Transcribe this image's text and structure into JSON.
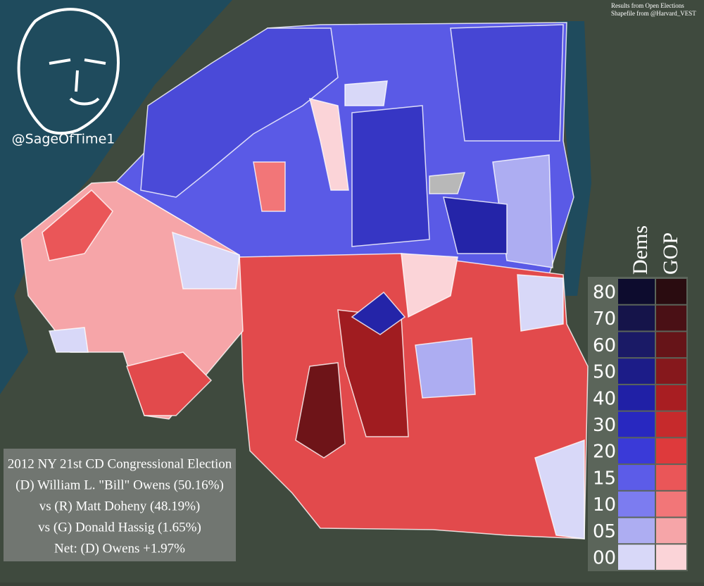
{
  "credits": [
    "Results from Open Elections",
    "Shapefile from @Harvard_VEST"
  ],
  "handle": "@SageOfTime1",
  "info": {
    "lines": [
      "2012 NY 21st CD Congressional Election",
      "(D) William L. \"Bill\" Owens (50.16%)",
      "vs (R) Matt Doheny (48.19%)",
      "vs (G) Donald Hassig (1.65%)",
      "Net: (D) Owens +1.97%"
    ]
  },
  "legend": {
    "headers": [
      "Dems",
      "GOP"
    ],
    "rows": [
      {
        "label": "80",
        "dem_color": "#0d0c2e",
        "gop_color": "#2a0c10"
      },
      {
        "label": "70",
        "dem_color": "#15144a",
        "gop_color": "#4a1015"
      },
      {
        "label": "60",
        "dem_color": "#1a1a66",
        "gop_color": "#661418"
      },
      {
        "label": "50",
        "dem_color": "#1c1c88",
        "gop_color": "#86181c"
      },
      {
        "label": "40",
        "dem_color": "#2020a6",
        "gop_color": "#a81e22"
      },
      {
        "label": "30",
        "dem_color": "#2828c0",
        "gop_color": "#c62a2c"
      },
      {
        "label": "20",
        "dem_color": "#3a3ad8",
        "gop_color": "#de3a3c"
      },
      {
        "label": "15",
        "dem_color": "#5c5ce8",
        "gop_color": "#ea5658"
      },
      {
        "label": "10",
        "dem_color": "#7c7cf0",
        "gop_color": "#f27678"
      },
      {
        "label": "05",
        "dem_color": "#adadf2",
        "gop_color": "#f6a5a8"
      },
      {
        "label": "00",
        "dem_color": "#d8d8f8",
        "gop_color": "#fbd4d8"
      }
    ]
  }
}
